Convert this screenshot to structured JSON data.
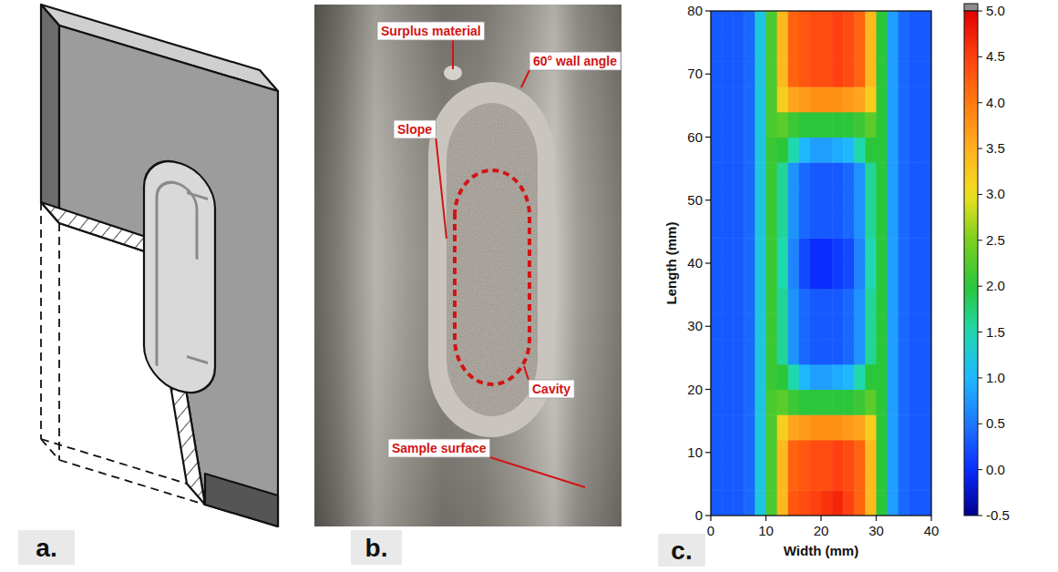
{
  "panel_a": {
    "letter": "a."
  },
  "panel_b": {
    "letter": "b.",
    "labels": [
      "Surplus material",
      "60° wall angle",
      "Slope",
      "Cavity",
      "Sample surface"
    ]
  },
  "chart_data": {
    "type": "heatmap",
    "letter": "c.",
    "x_label": "Width (mm)",
    "y_label": "Length (mm)",
    "xlim": [
      0,
      40
    ],
    "ylim": [
      0,
      80
    ],
    "xticks": [
      0,
      10,
      20,
      30,
      40
    ],
    "yticks": [
      0,
      10,
      20,
      30,
      40,
      50,
      60,
      70,
      80
    ],
    "cells": {
      "x_edges": [
        0,
        2,
        4,
        6,
        8,
        10,
        12,
        14,
        16,
        18,
        20,
        22,
        24,
        26,
        28,
        30,
        32,
        34,
        36,
        38,
        40
      ],
      "y_edges": [
        0,
        4,
        8,
        12,
        16,
        20,
        24,
        28,
        32,
        36,
        40,
        44,
        48,
        52,
        56,
        60,
        64,
        68,
        72,
        76,
        80
      ],
      "values": [
        [
          0.3,
          0.3,
          0.3,
          0.4,
          1.2,
          2.2,
          3.4,
          4.3,
          4.4,
          4.5,
          4.6,
          4.7,
          4.5,
          4.2,
          3.4,
          2.0,
          0.8,
          0.4,
          0.3,
          0.3
        ],
        [
          0.3,
          0.3,
          0.3,
          0.4,
          1.2,
          2.2,
          3.4,
          4.2,
          4.3,
          4.4,
          4.4,
          4.5,
          4.4,
          4.2,
          3.4,
          2.0,
          0.8,
          0.4,
          0.3,
          0.3
        ],
        [
          0.3,
          0.3,
          0.3,
          0.4,
          1.2,
          2.2,
          3.4,
          4.2,
          4.3,
          4.4,
          4.4,
          4.5,
          4.4,
          4.2,
          3.4,
          2.0,
          0.8,
          0.4,
          0.3,
          0.3
        ],
        [
          0.3,
          0.3,
          0.3,
          0.4,
          1.2,
          2.2,
          3.2,
          3.6,
          3.7,
          3.8,
          3.8,
          3.8,
          3.7,
          3.6,
          3.2,
          2.0,
          0.8,
          0.4,
          0.3,
          0.3
        ],
        [
          0.3,
          0.3,
          0.3,
          0.4,
          1.2,
          2.2,
          2.3,
          2.1,
          2.0,
          2.0,
          2.0,
          2.0,
          2.0,
          2.1,
          2.3,
          2.0,
          0.8,
          0.4,
          0.3,
          0.3
        ],
        [
          0.3,
          0.3,
          0.3,
          0.4,
          1.2,
          2.1,
          2.0,
          1.5,
          1.0,
          0.8,
          0.8,
          0.9,
          1.0,
          1.5,
          2.0,
          2.0,
          0.8,
          0.4,
          0.3,
          0.3
        ],
        [
          0.3,
          0.3,
          0.3,
          0.4,
          1.2,
          2.1,
          1.6,
          0.7,
          0.4,
          0.3,
          0.3,
          0.3,
          0.4,
          0.7,
          1.6,
          2.0,
          0.8,
          0.4,
          0.3,
          0.3
        ],
        [
          0.3,
          0.3,
          0.3,
          0.4,
          1.2,
          2.1,
          1.6,
          0.7,
          0.4,
          0.3,
          0.3,
          0.3,
          0.4,
          0.7,
          1.6,
          2.0,
          0.8,
          0.4,
          0.3,
          0.3
        ],
        [
          0.3,
          0.3,
          0.3,
          0.4,
          1.2,
          2.1,
          1.6,
          0.7,
          0.4,
          0.3,
          0.3,
          0.3,
          0.4,
          0.7,
          1.6,
          2.0,
          0.8,
          0.4,
          0.3,
          0.3
        ],
        [
          0.3,
          0.3,
          0.3,
          0.4,
          1.2,
          2.1,
          1.5,
          0.6,
          0.2,
          0.0,
          0.0,
          0.1,
          0.2,
          0.6,
          1.5,
          2.0,
          0.8,
          0.4,
          0.3,
          0.3
        ],
        [
          0.3,
          0.3,
          0.3,
          0.4,
          1.2,
          2.1,
          1.5,
          0.6,
          0.2,
          0.0,
          0.0,
          0.1,
          0.2,
          0.6,
          1.5,
          2.0,
          0.8,
          0.4,
          0.3,
          0.3
        ],
        [
          0.3,
          0.3,
          0.3,
          0.4,
          1.2,
          2.1,
          1.6,
          0.7,
          0.4,
          0.3,
          0.3,
          0.3,
          0.4,
          0.7,
          1.6,
          2.0,
          0.8,
          0.4,
          0.3,
          0.3
        ],
        [
          0.3,
          0.3,
          0.3,
          0.4,
          1.2,
          2.1,
          1.6,
          0.7,
          0.4,
          0.3,
          0.3,
          0.3,
          0.4,
          0.7,
          1.6,
          2.0,
          0.8,
          0.4,
          0.3,
          0.3
        ],
        [
          0.3,
          0.3,
          0.3,
          0.4,
          1.2,
          2.1,
          1.6,
          0.7,
          0.4,
          0.3,
          0.3,
          0.3,
          0.4,
          0.7,
          1.6,
          2.0,
          0.8,
          0.4,
          0.3,
          0.3
        ],
        [
          0.3,
          0.3,
          0.3,
          0.4,
          1.2,
          2.1,
          2.0,
          1.5,
          1.0,
          0.8,
          0.8,
          0.9,
          1.0,
          1.5,
          2.0,
          2.0,
          0.8,
          0.4,
          0.3,
          0.3
        ],
        [
          0.3,
          0.3,
          0.3,
          0.4,
          1.2,
          2.2,
          2.3,
          2.1,
          2.0,
          2.0,
          2.0,
          2.0,
          2.0,
          2.1,
          2.3,
          2.0,
          0.8,
          0.4,
          0.3,
          0.3
        ],
        [
          0.3,
          0.3,
          0.3,
          0.4,
          1.2,
          2.2,
          3.2,
          3.6,
          3.7,
          3.8,
          3.8,
          3.8,
          3.7,
          3.6,
          3.2,
          2.0,
          0.8,
          0.4,
          0.3,
          0.3
        ],
        [
          0.3,
          0.3,
          0.3,
          0.4,
          1.2,
          2.2,
          3.4,
          4.2,
          4.3,
          4.4,
          4.4,
          4.5,
          4.4,
          4.2,
          3.4,
          2.0,
          0.8,
          0.4,
          0.3,
          0.3
        ],
        [
          0.3,
          0.3,
          0.3,
          0.4,
          1.2,
          2.2,
          3.4,
          4.2,
          4.3,
          4.4,
          4.4,
          4.5,
          4.4,
          4.2,
          3.4,
          2.0,
          0.8,
          0.4,
          0.3,
          0.3
        ],
        [
          0.3,
          0.3,
          0.3,
          0.4,
          1.2,
          2.2,
          3.4,
          4.2,
          4.3,
          4.4,
          4.4,
          4.5,
          4.4,
          4.2,
          3.4,
          2.0,
          0.8,
          0.4,
          0.3,
          0.3
        ]
      ]
    },
    "colorbar": {
      "lim": [
        -0.5,
        5.0
      ],
      "ticks": [
        {
          "value": 5.0,
          "label": "5.0"
        },
        {
          "value": 4.5,
          "label": "4.5"
        },
        {
          "value": 4.0,
          "label": "4.0"
        },
        {
          "value": 3.5,
          "label": "3.5"
        },
        {
          "value": 3.0,
          "label": "3.0"
        },
        {
          "value": 2.5,
          "label": "2.5"
        },
        {
          "value": 2.0,
          "label": "2.0"
        },
        {
          "value": 1.5,
          "label": "1.5"
        },
        {
          "value": 1.0,
          "label": "1.0"
        },
        {
          "value": 0.5,
          "label": "0.5"
        },
        {
          "value": 0.0,
          "label": "0.0"
        },
        {
          "value": -0.5,
          "label": "-0.5"
        }
      ]
    }
  }
}
